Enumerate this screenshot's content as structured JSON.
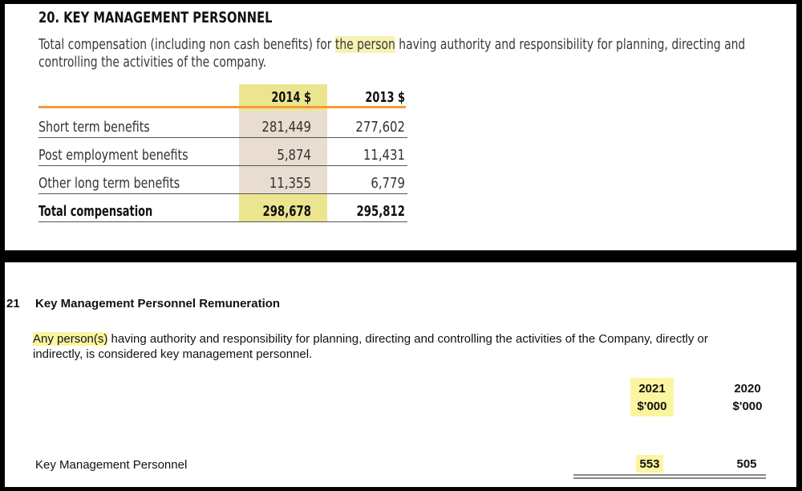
{
  "top": {
    "heading": "20. KEY MANAGEMENT PERSONNEL",
    "desc_pre": "Total compensation (including non cash benefits) for ",
    "desc_hl": "the person",
    "desc_post": " having authority and responsibility for planning, directing and controlling the activities of the company.",
    "columns": [
      "2014 $",
      "2013 $"
    ],
    "rows": [
      {
        "label": "Short term benefits",
        "v2014": "281,449",
        "v2013": "277,602"
      },
      {
        "label": "Post employment benefits",
        "v2014": "5,874",
        "v2013": "11,431"
      },
      {
        "label": "Other long term benefits",
        "v2014": "11,355",
        "v2013": "6,779"
      }
    ],
    "total": {
      "label": "Total compensation",
      "v2014": "298,678",
      "v2013": "295,812"
    }
  },
  "bottom": {
    "number": "21",
    "title": "Key Management Personnel Remuneration",
    "desc_hl": "Any person(s)",
    "desc_post": " having authority and responsibility for planning, directing and controlling the activities of the Company, directly or indirectly, is considered key management personnel.",
    "col_2021_year": "2021",
    "col_2021_unit": "$'000",
    "col_2020_year": "2020",
    "col_2020_unit": "$'000",
    "row_label": "Key Management Personnel",
    "v2021": "553",
    "v2020": "505"
  },
  "colors": {
    "highlight": "#ece590",
    "orange_rule": "#f39a3c",
    "column_tint": "#e8ddd0"
  }
}
